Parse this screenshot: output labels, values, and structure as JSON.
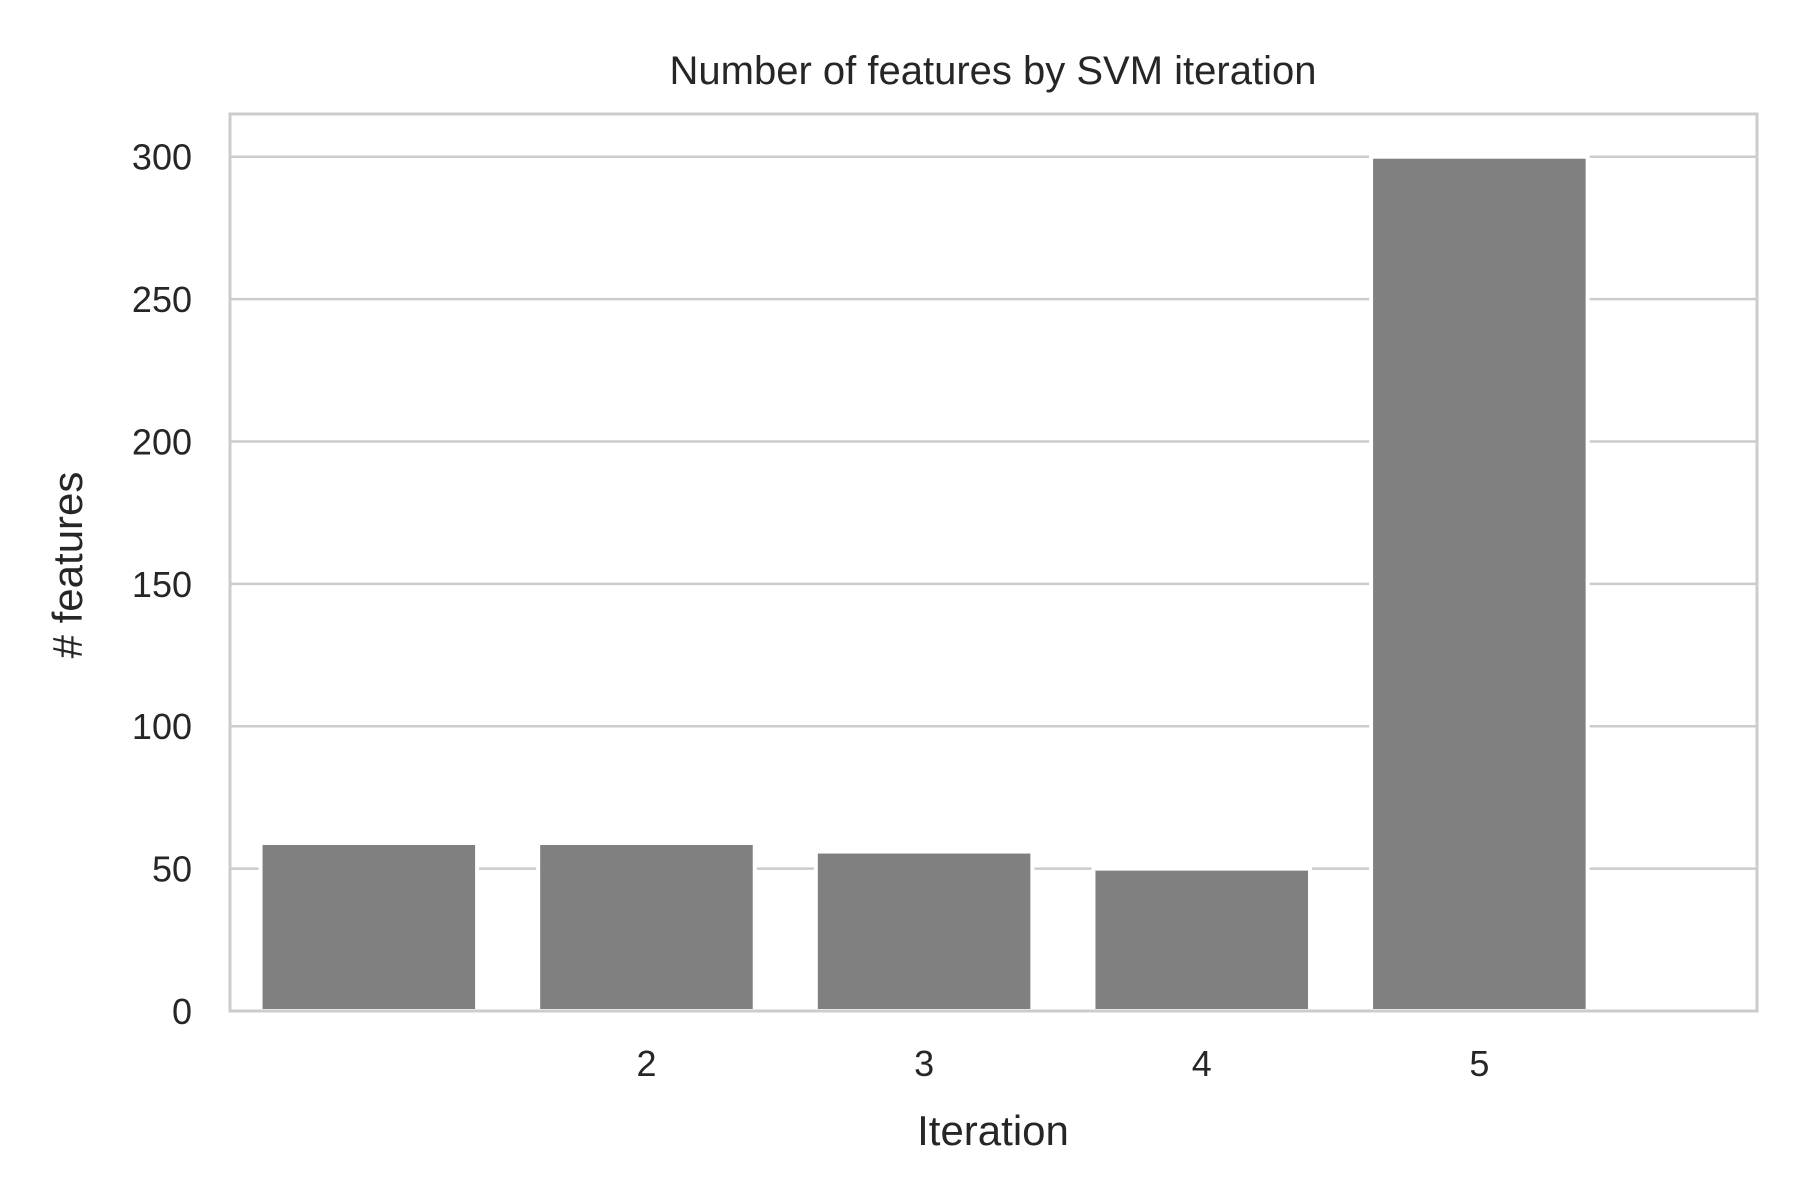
{
  "chart_data": {
    "type": "bar",
    "title": "Number of features by SVM iteration",
    "xlabel": "Iteration",
    "ylabel": "# features",
    "categories": [
      "",
      "2",
      "3",
      "4",
      "5"
    ],
    "values": [
      59,
      59,
      56,
      50,
      300
    ],
    "ylim": [
      0,
      315
    ],
    "yticks": [
      0,
      50,
      100,
      150,
      200,
      250,
      300
    ],
    "xlim": [
      -0.5,
      5.0
    ],
    "bar_color": "#808080",
    "grid": true,
    "grid_axis": "y",
    "legend": "none"
  }
}
